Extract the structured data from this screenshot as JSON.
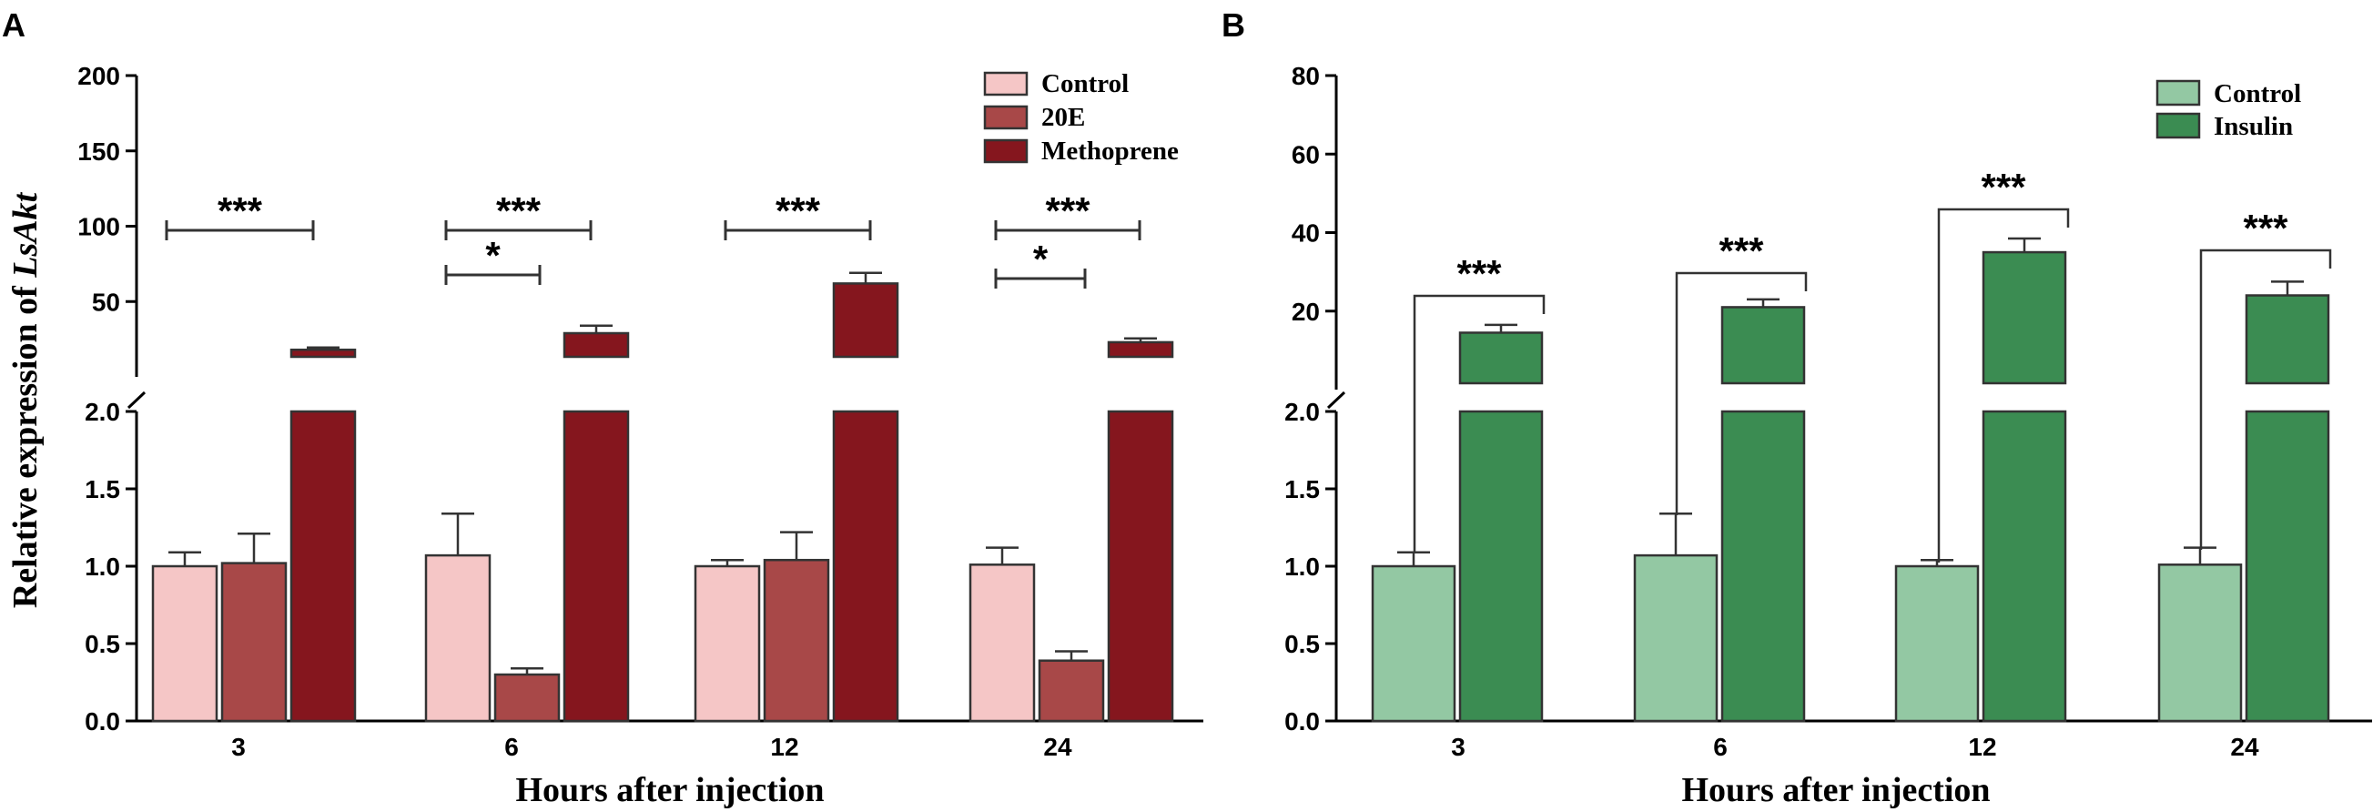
{
  "figure": {
    "ylabel_prefix": "Relative expression of ",
    "ylabel_gene": "LsAkt",
    "xlabel": "Hours after injection"
  },
  "chart_data": [
    {
      "panel": "A",
      "type": "bar",
      "categories": [
        "3",
        "6",
        "12",
        "24"
      ],
      "xlabel": "Hours after injection",
      "ylabel": "Relative expression of LsAkt",
      "axis_break": true,
      "lower_ylim": [
        0,
        2.0
      ],
      "lower_yticks": [
        "0.0",
        "0.5",
        "1.0",
        "1.5",
        "2.0"
      ],
      "upper_ylim": [
        0,
        200
      ],
      "upper_yticks": [
        "50",
        "100",
        "150",
        "200"
      ],
      "legend": [
        "Control",
        "20E",
        "Methoprene"
      ],
      "legend_position": "top-right",
      "colors": [
        "#f5c6c6",
        "#a84848",
        "#85161e"
      ],
      "series": [
        {
          "name": "Control",
          "values": [
            1.0,
            1.07,
            1.0,
            1.01
          ],
          "errors": [
            0.09,
            0.27,
            0.04,
            0.11
          ]
        },
        {
          "name": "20E",
          "values": [
            1.02,
            0.3,
            1.04,
            0.39
          ],
          "errors": [
            0.19,
            0.04,
            0.18,
            0.06
          ]
        },
        {
          "name": "Methoprene",
          "values": [
            18,
            29,
            62,
            23
          ],
          "errors": [
            1.5,
            5,
            7,
            2.5
          ]
        }
      ],
      "significance": [
        {
          "category": "3",
          "from": "Control",
          "to": "Methoprene",
          "label": "***"
        },
        {
          "category": "6",
          "from": "Control",
          "to": "Methoprene",
          "label": "***"
        },
        {
          "category": "6",
          "from": "Control",
          "to": "20E",
          "label": "*"
        },
        {
          "category": "12",
          "from": "Control",
          "to": "Methoprene",
          "label": "***"
        },
        {
          "category": "24",
          "from": "Control",
          "to": "Methoprene",
          "label": "***"
        },
        {
          "category": "24",
          "from": "Control",
          "to": "20E",
          "label": "*"
        }
      ]
    },
    {
      "panel": "B",
      "type": "bar",
      "categories": [
        "3",
        "6",
        "12",
        "24"
      ],
      "xlabel": "Hours after injection",
      "axis_break": true,
      "lower_ylim": [
        0,
        2.0
      ],
      "lower_yticks": [
        "0.0",
        "0.5",
        "1.0",
        "1.5",
        "2.0"
      ],
      "upper_ylim": [
        0,
        80
      ],
      "upper_yticks": [
        "20",
        "40",
        "60",
        "80"
      ],
      "legend": [
        "Control",
        "Insulin"
      ],
      "legend_position": "top-right",
      "colors": [
        "#93c8a3",
        "#3b8c52"
      ],
      "series": [
        {
          "name": "Control",
          "values": [
            1.0,
            1.07,
            1.0,
            1.01
          ],
          "errors": [
            0.09,
            0.27,
            0.04,
            0.11
          ]
        },
        {
          "name": "Insulin",
          "values": [
            14.5,
            21,
            35,
            24
          ],
          "errors": [
            2,
            2,
            3.5,
            3.5
          ]
        }
      ],
      "significance": [
        {
          "category": "3",
          "from": "Control",
          "to": "Insulin",
          "label": "***"
        },
        {
          "category": "6",
          "from": "Control",
          "to": "Insulin",
          "label": "***"
        },
        {
          "category": "12",
          "from": "Control",
          "to": "Insulin",
          "label": "***"
        },
        {
          "category": "24",
          "from": "Control",
          "to": "Insulin",
          "label": "***"
        }
      ]
    }
  ]
}
